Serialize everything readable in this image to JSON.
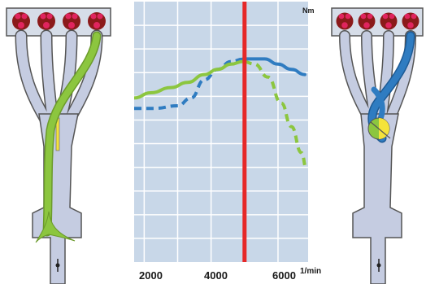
{
  "chart_data": {
    "type": "line",
    "unit_top": "Nm",
    "x_unit": "1/min",
    "x_ticks": [
      "2000",
      "4000",
      "6000"
    ],
    "xlim": [
      1200,
      6400
    ],
    "ylim": [
      0,
      100
    ],
    "grid": true,
    "marker_rpm": 4500,
    "series": [
      {
        "color": "#2f7cc1",
        "solid_from_rpm": 4450,
        "points": [
          [
            1200,
            59
          ],
          [
            1800,
            59
          ],
          [
            2500,
            60
          ],
          [
            2900,
            63
          ],
          [
            3300,
            70
          ],
          [
            3700,
            74
          ],
          [
            4100,
            77
          ],
          [
            4500,
            78
          ],
          [
            4800,
            78
          ],
          [
            5100,
            78
          ],
          [
            5500,
            76
          ],
          [
            5900,
            74
          ],
          [
            6300,
            72
          ]
        ]
      },
      {
        "color": "#8cc63f",
        "solid_to_rpm": 4500,
        "points": [
          [
            1200,
            63
          ],
          [
            1700,
            65
          ],
          [
            2300,
            67
          ],
          [
            2800,
            69
          ],
          [
            3300,
            72
          ],
          [
            3700,
            74
          ],
          [
            4100,
            76
          ],
          [
            4450,
            77
          ],
          [
            4800,
            76
          ],
          [
            5200,
            71
          ],
          [
            5600,
            61
          ],
          [
            5900,
            52
          ],
          [
            6200,
            42
          ],
          [
            6350,
            36
          ]
        ]
      }
    ]
  },
  "manifolds": {
    "colors": {
      "manifold_fill": "#c5cce1",
      "cylinder_bank": "#d6dde8",
      "cylinder_ring": "#8b1a1a",
      "valve_dot": "#e0245e",
      "green_path": "#8cc63f",
      "blue_path": "#2f7cc1",
      "flap": "#f5e33a",
      "chart_bg": "#c8d7e8",
      "marker": "#e62828"
    },
    "left_flap": "switch-flap-open",
    "right_flap": "switch-flap-closed"
  }
}
